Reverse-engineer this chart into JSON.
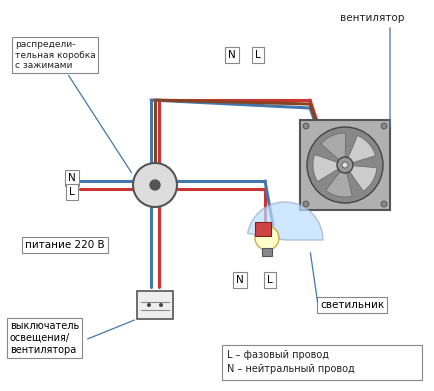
{
  "title": "",
  "bg_color": "#ffffff",
  "fig_w": 4.34,
  "fig_h": 3.91,
  "dpi": 100,
  "labels": {
    "junction_box": "распредели-\nтельная коробка\nс зажимами",
    "fan": "вентилятор",
    "power": "питание 220 В",
    "switch": "выключатель\nосвещения/\nвентилятора",
    "light": "светильник",
    "N_top": "N",
    "L_top": "L",
    "N_mid": "N",
    "L_mid": "L",
    "N_left": "N",
    "L_left": "L",
    "legend_L": "L – фазовый провод",
    "legend_N": "N – нейтральный провод"
  },
  "colors": {
    "blue_wire": "#4477aa",
    "red_wire": "#cc3333",
    "brown_wire": "#884422",
    "junction_fill": "#dddddd",
    "junction_edge": "#555555",
    "fan_bg": "#aaaaaa",
    "fan_blade": "#cccccc",
    "switch_fill": "#eeeeee",
    "switch_edge": "#555555",
    "light_bg": "#bbddff",
    "label_box": "#ffffff",
    "label_edge": "#444444",
    "arrow_color": "#4477aa",
    "text_color": "#222222"
  }
}
